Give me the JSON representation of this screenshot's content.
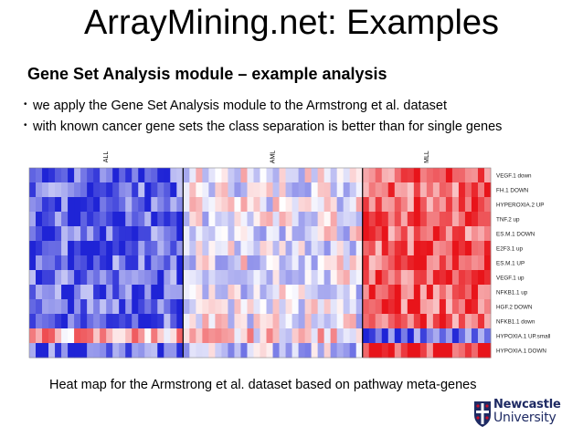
{
  "slide": {
    "title": "ArrayMining.net: Examples",
    "subtitle": "Gene Set Analysis module – example analysis",
    "bullet_marker": "•",
    "bullets": [
      "we apply the Gene Set Analysis module to the Armstrong et al. dataset",
      "with known cancer gene sets the class separation is better than for single genes"
    ],
    "caption": "Heat map for the Armstrong et al. dataset based on pathway meta-genes"
  },
  "heatmap": {
    "groups": [
      "ALL",
      "AML",
      "MLL"
    ],
    "group_sizes": [
      24,
      28,
      20
    ],
    "rows": [
      "VEGF.1 down",
      "FH.1 DOWN",
      "HYPEROXIA.2 UP",
      "TNF.2 up",
      "ES.M.1 DOWN",
      "E2F3.1 up",
      "ES.M.1 UP",
      "VEGF.1 up",
      "NFKB1.1 up",
      "HGF.2 DOWN",
      "NFKB1.1 down",
      "HYPOXIA.1 UP.small",
      "HYPOXIA.1 DOWN"
    ],
    "colors": {
      "low": "#1f24d6",
      "mid": "#ffffff",
      "high": "#e8141a",
      "divider": "#000000"
    }
  },
  "logo": {
    "name_line1": "Newcastle",
    "name_line2": "University",
    "icon": "university-crest-icon",
    "colors": {
      "shield": "#1e2a63",
      "cross": "#ffffff",
      "accent": "#c8102e"
    }
  }
}
